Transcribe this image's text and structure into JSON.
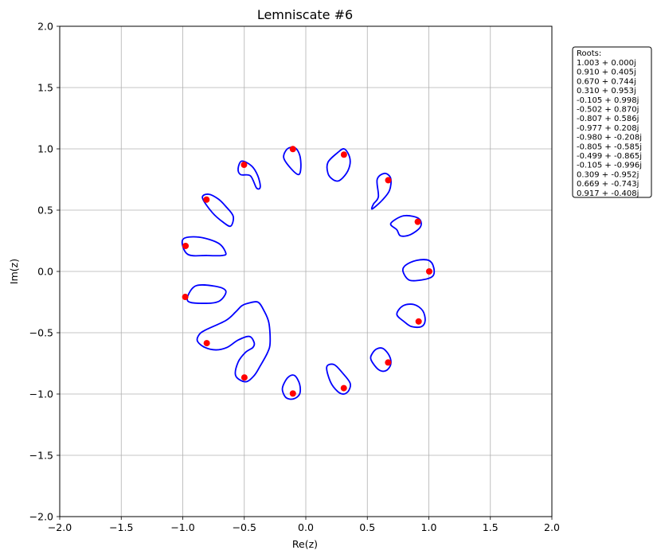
{
  "chart_data": {
    "type": "scatter",
    "title": "Lemniscate #6",
    "xlabel": "Re(z)",
    "ylabel": "Im(z)",
    "xlim": [
      -2.0,
      2.0
    ],
    "ylim": [
      -2.0,
      2.0
    ],
    "grid": true,
    "xticks": [
      "−2.0",
      "−1.5",
      "−1.0",
      "−0.5",
      "0.0",
      "0.5",
      "1.0",
      "1.5",
      "2.0"
    ],
    "yticks": [
      "−2.0",
      "−1.5",
      "−1.0",
      "−0.5",
      "0.0",
      "0.5",
      "1.0",
      "1.5",
      "2.0"
    ],
    "colors": {
      "curve": "#0000ff",
      "roots": "#ff0000",
      "grid": "#b0b0b0"
    },
    "roots_box": {
      "header": "Roots:",
      "placement": "outside-right",
      "entries": [
        "1.003 + 0.000j",
        "0.910 + 0.405j",
        "0.670 + 0.744j",
        "0.310 + 0.953j",
        "-0.105 + 0.998j",
        "-0.502 + 0.870j",
        "-0.807 + 0.586j",
        "-0.977 + 0.208j",
        "-0.980 + -0.208j",
        "-0.805 + -0.585j",
        "-0.499 + -0.865j",
        "-0.105 + -0.996j",
        "0.309 + -0.952j",
        "0.669 + -0.743j",
        "0.917 + -0.408j"
      ]
    },
    "roots": [
      {
        "x": 1.003,
        "y": 0.0
      },
      {
        "x": 0.91,
        "y": 0.405
      },
      {
        "x": 0.67,
        "y": 0.744
      },
      {
        "x": 0.31,
        "y": 0.953
      },
      {
        "x": -0.105,
        "y": 0.998
      },
      {
        "x": -0.502,
        "y": 0.87
      },
      {
        "x": -0.807,
        "y": 0.586
      },
      {
        "x": -0.977,
        "y": 0.208
      },
      {
        "x": -0.98,
        "y": -0.208
      },
      {
        "x": -0.805,
        "y": -0.585
      },
      {
        "x": -0.499,
        "y": -0.865
      },
      {
        "x": -0.105,
        "y": -0.996
      },
      {
        "x": 0.309,
        "y": -0.952
      },
      {
        "x": 0.669,
        "y": -0.743
      },
      {
        "x": 0.917,
        "y": -0.408
      }
    ],
    "curves": [
      {
        "points": [
          [
            0.74,
            -0.35
          ],
          [
            0.79,
            -0.28
          ],
          [
            0.88,
            -0.27
          ],
          [
            0.95,
            -0.32
          ],
          [
            0.97,
            -0.4
          ],
          [
            0.94,
            -0.45
          ],
          [
            0.86,
            -0.45
          ],
          [
            0.8,
            -0.41
          ]
        ]
      },
      {
        "points": [
          [
            0.74,
            0.34
          ],
          [
            0.77,
            0.29
          ],
          [
            0.85,
            0.3
          ],
          [
            0.93,
            0.36
          ],
          [
            0.93,
            0.42
          ],
          [
            0.87,
            0.45
          ],
          [
            0.78,
            0.45
          ],
          [
            0.69,
            0.39
          ]
        ]
      },
      {
        "points": [
          [
            0.79,
            0.0
          ],
          [
            0.81,
            0.05
          ],
          [
            0.9,
            0.09
          ],
          [
            1.0,
            0.09
          ],
          [
            1.04,
            0.03
          ],
          [
            1.03,
            -0.04
          ],
          [
            0.94,
            -0.07
          ],
          [
            0.84,
            -0.07
          ]
        ]
      },
      {
        "points": [
          [
            0.59,
            0.61
          ],
          [
            0.55,
            0.55
          ],
          [
            0.54,
            0.51
          ],
          [
            0.62,
            0.58
          ],
          [
            0.68,
            0.66
          ],
          [
            0.69,
            0.76
          ],
          [
            0.64,
            0.8
          ],
          [
            0.58,
            0.75
          ]
        ]
      },
      {
        "points": [
          [
            0.18,
            0.8
          ],
          [
            0.22,
            0.75
          ],
          [
            0.27,
            0.74
          ],
          [
            0.33,
            0.8
          ],
          [
            0.36,
            0.88
          ],
          [
            0.35,
            0.95
          ],
          [
            0.31,
            1.0
          ],
          [
            0.26,
            0.97
          ],
          [
            0.18,
            0.89
          ]
        ]
      },
      {
        "points": [
          [
            -0.13,
            0.85
          ],
          [
            -0.06,
            0.79
          ],
          [
            -0.04,
            0.85
          ],
          [
            -0.05,
            0.95
          ],
          [
            -0.09,
            1.01
          ],
          [
            -0.15,
            1.0
          ],
          [
            -0.18,
            0.93
          ]
        ]
      },
      {
        "points": [
          [
            -0.45,
            0.78
          ],
          [
            -0.4,
            0.68
          ],
          [
            -0.37,
            0.69
          ],
          [
            -0.39,
            0.78
          ],
          [
            -0.44,
            0.86
          ],
          [
            -0.52,
            0.9
          ],
          [
            -0.55,
            0.84
          ],
          [
            -0.53,
            0.79
          ]
        ]
      },
      {
        "points": [
          [
            -0.76,
            0.48
          ],
          [
            -0.67,
            0.4
          ],
          [
            -0.61,
            0.37
          ],
          [
            -0.59,
            0.45
          ],
          [
            -0.65,
            0.53
          ],
          [
            -0.71,
            0.59
          ],
          [
            -0.79,
            0.63
          ],
          [
            -0.84,
            0.6
          ]
        ]
      },
      {
        "points": [
          [
            -0.96,
            0.14
          ],
          [
            -0.8,
            0.13
          ],
          [
            -0.68,
            0.13
          ],
          [
            -0.65,
            0.15
          ],
          [
            -0.71,
            0.23
          ],
          [
            -0.87,
            0.28
          ],
          [
            -1.0,
            0.26
          ]
        ]
      },
      {
        "points": [
          [
            -0.96,
            -0.24
          ],
          [
            -0.81,
            -0.26
          ],
          [
            -0.7,
            -0.24
          ],
          [
            -0.65,
            -0.16
          ],
          [
            -0.74,
            -0.12
          ],
          [
            -0.9,
            -0.12
          ]
        ]
      },
      {
        "points": [
          [
            -0.82,
            -0.48
          ],
          [
            -0.65,
            -0.4
          ],
          [
            -0.57,
            -0.33
          ],
          [
            -0.52,
            -0.28
          ],
          [
            -0.47,
            -0.26
          ],
          [
            -0.39,
            -0.25
          ],
          [
            -0.34,
            -0.32
          ],
          [
            -0.3,
            -0.42
          ],
          [
            -0.29,
            -0.58
          ],
          [
            -0.31,
            -0.66
          ],
          [
            -0.37,
            -0.77
          ],
          [
            -0.42,
            -0.85
          ],
          [
            -0.49,
            -0.9
          ],
          [
            -0.57,
            -0.85
          ],
          [
            -0.55,
            -0.74
          ],
          [
            -0.49,
            -0.66
          ],
          [
            -0.43,
            -0.62
          ],
          [
            -0.42,
            -0.58
          ],
          [
            -0.46,
            -0.53
          ],
          [
            -0.55,
            -0.56
          ],
          [
            -0.64,
            -0.62
          ],
          [
            -0.73,
            -0.64
          ],
          [
            -0.82,
            -0.62
          ],
          [
            -0.88,
            -0.57
          ],
          [
            -0.87,
            -0.52
          ]
        ]
      },
      {
        "points": [
          [
            -0.18,
            -0.92
          ],
          [
            -0.14,
            -0.86
          ],
          [
            -0.09,
            -0.85
          ],
          [
            -0.05,
            -0.92
          ],
          [
            -0.05,
            -1.0
          ],
          [
            -0.1,
            -1.04
          ],
          [
            -0.16,
            -1.03
          ],
          [
            -0.19,
            -0.97
          ]
        ]
      },
      {
        "points": [
          [
            0.17,
            -0.78
          ],
          [
            0.23,
            -0.76
          ],
          [
            0.3,
            -0.83
          ],
          [
            0.36,
            -0.91
          ],
          [
            0.35,
            -0.97
          ],
          [
            0.31,
            -1.0
          ],
          [
            0.26,
            -0.98
          ],
          [
            0.2,
            -0.9
          ]
        ]
      },
      {
        "points": [
          [
            0.54,
            -0.67
          ],
          [
            0.58,
            -0.63
          ],
          [
            0.63,
            -0.63
          ],
          [
            0.68,
            -0.69
          ],
          [
            0.69,
            -0.76
          ],
          [
            0.65,
            -0.81
          ],
          [
            0.59,
            -0.8
          ],
          [
            0.53,
            -0.72
          ]
        ]
      }
    ]
  }
}
